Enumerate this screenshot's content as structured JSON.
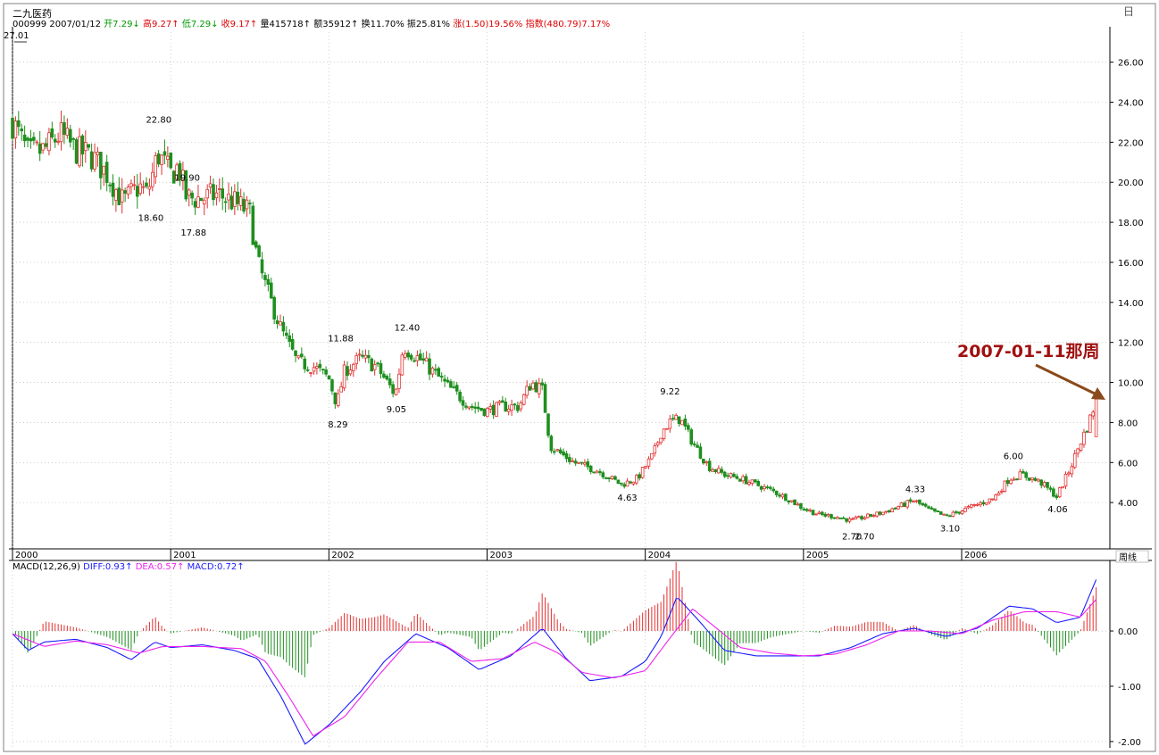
{
  "header": {
    "stock_name": "二九医药",
    "code": "000999",
    "date": "2007/01/12",
    "items": [
      {
        "label": "开",
        "value": "7.29",
        "arrow": "↓",
        "color": "#009900"
      },
      {
        "label": "高",
        "value": "9.27",
        "arrow": "↑",
        "color": "#dd0000"
      },
      {
        "label": "低",
        "value": "7.29",
        "arrow": "↓",
        "color": "#009900"
      },
      {
        "label": "收",
        "value": "9.17",
        "arrow": "↑",
        "color": "#dd0000"
      },
      {
        "label": "量",
        "value": "415718",
        "arrow": "↑",
        "color": "#000000"
      },
      {
        "label": "额",
        "value": "35912",
        "arrow": "↑",
        "color": "#000000"
      },
      {
        "label": "换",
        "value": "11.70%",
        "arrow": "",
        "color": "#000000"
      },
      {
        "label": "振",
        "value": "25.81%",
        "arrow": "",
        "color": "#000000"
      },
      {
        "label": "涨",
        "value": "(1.50)19.56%",
        "arrow": "",
        "color": "#dd0000"
      },
      {
        "label": "指数",
        "value": "(480.79)7.17%",
        "arrow": "",
        "color": "#dd0000"
      }
    ]
  },
  "corner_icon": "日",
  "period_label": "周线",
  "annotation": {
    "text": "2007-01-11那周",
    "color": "#a01010"
  },
  "macd_header": {
    "title": "MACD(12,26,9)",
    "diff": "DIFF:0.93",
    "dea": "DEA:0.57",
    "macd": "MACD:0.72",
    "arrow": "↑"
  },
  "colors": {
    "up": "#e23030",
    "down": "#1f8f1f",
    "diff_line": "#1a1aff",
    "dea_line": "#ee22ee",
    "grid": "#b0b0b0",
    "annotation": "#a01010"
  },
  "chart_data": [
    {
      "type": "candlestick",
      "period": "weekly",
      "y_axis_ticks": [
        "26.00",
        "24.00",
        "22.00",
        "20.00",
        "18.00",
        "16.00",
        "14.00",
        "12.00",
        "10.00",
        "8.00",
        "6.00",
        "4.00"
      ],
      "ylim": [
        2.0,
        27.5
      ],
      "x_axis_labels": [
        "2000",
        "2001",
        "2002",
        "2003",
        "2004",
        "2005",
        "2006"
      ],
      "x_range": [
        "2000-01",
        "2007-01"
      ],
      "high_low_labels": [
        {
          "text": "27.01",
          "x": 2000.0,
          "y": 27.01
        },
        {
          "text": "22.80",
          "x": 2000.9,
          "y": 22.8
        },
        {
          "text": "18.60",
          "x": 2000.85,
          "y": 18.6
        },
        {
          "text": "19.90",
          "x": 2001.08,
          "y": 19.9
        },
        {
          "text": "17.88",
          "x": 2001.12,
          "y": 17.88
        },
        {
          "text": "11.88",
          "x": 2002.05,
          "y": 11.88
        },
        {
          "text": "8.29",
          "x": 2002.05,
          "y": 8.29
        },
        {
          "text": "12.40",
          "x": 2002.47,
          "y": 12.4
        },
        {
          "text": "9.05",
          "x": 2002.42,
          "y": 9.05
        },
        {
          "text": "4.63",
          "x": 2003.88,
          "y": 4.63
        },
        {
          "text": "9.22",
          "x": 2004.15,
          "y": 9.22
        },
        {
          "text": "2.70",
          "x": 2005.3,
          "y": 2.7
        },
        {
          "text": "2.70",
          "x": 2005.38,
          "y": 2.7
        },
        {
          "text": "4.33",
          "x": 2005.7,
          "y": 4.33
        },
        {
          "text": "3.10",
          "x": 2005.92,
          "y": 3.1
        },
        {
          "text": "6.00",
          "x": 2006.32,
          "y": 6.0
        },
        {
          "text": "4.06",
          "x": 2006.6,
          "y": 4.06
        }
      ],
      "close_path": [
        [
          2000.0,
          23.0
        ],
        [
          2000.1,
          21.4
        ],
        [
          2000.2,
          21.6
        ],
        [
          2000.3,
          22.4
        ],
        [
          2000.4,
          21.6
        ],
        [
          2000.5,
          21.3
        ],
        [
          2000.6,
          20.4
        ],
        [
          2000.7,
          19.0
        ],
        [
          2000.8,
          19.8
        ],
        [
          2000.85,
          19.4
        ],
        [
          2000.92,
          21.4
        ],
        [
          2001.0,
          20.4
        ],
        [
          2001.05,
          20.8
        ],
        [
          2001.1,
          19.2
        ],
        [
          2001.2,
          19.2
        ],
        [
          2001.3,
          19.4
        ],
        [
          2001.4,
          19.0
        ],
        [
          2001.5,
          18.5
        ],
        [
          2001.55,
          16.0
        ],
        [
          2001.6,
          14.8
        ],
        [
          2001.7,
          12.6
        ],
        [
          2001.8,
          11.0
        ],
        [
          2001.9,
          10.8
        ],
        [
          2002.0,
          10.2
        ],
        [
          2002.05,
          8.9
        ],
        [
          2002.1,
          10.6
        ],
        [
          2002.2,
          11.2
        ],
        [
          2002.3,
          10.8
        ],
        [
          2002.42,
          9.4
        ],
        [
          2002.47,
          11.8
        ],
        [
          2002.6,
          11.0
        ],
        [
          2002.75,
          9.8
        ],
        [
          2002.9,
          8.8
        ],
        [
          2003.0,
          8.6
        ],
        [
          2003.1,
          8.8
        ],
        [
          2003.2,
          8.8
        ],
        [
          2003.28,
          10.0
        ],
        [
          2003.35,
          9.6
        ],
        [
          2003.4,
          6.8
        ],
        [
          2003.55,
          6.0
        ],
        [
          2003.7,
          5.6
        ],
        [
          2003.85,
          4.9
        ],
        [
          2003.95,
          5.2
        ],
        [
          2004.05,
          6.4
        ],
        [
          2004.1,
          7.5
        ],
        [
          2004.15,
          8.0
        ],
        [
          2004.22,
          8.2
        ],
        [
          2004.3,
          7.0
        ],
        [
          2004.4,
          5.8
        ],
        [
          2004.5,
          5.4
        ],
        [
          2004.6,
          5.2
        ],
        [
          2004.7,
          4.9
        ],
        [
          2004.8,
          4.6
        ],
        [
          2004.9,
          4.2
        ],
        [
          2005.0,
          3.7
        ],
        [
          2005.1,
          3.4
        ],
        [
          2005.2,
          3.3
        ],
        [
          2005.3,
          3.1
        ],
        [
          2005.4,
          3.3
        ],
        [
          2005.5,
          3.5
        ],
        [
          2005.6,
          3.8
        ],
        [
          2005.7,
          4.1
        ],
        [
          2005.8,
          3.6
        ],
        [
          2005.9,
          3.3
        ],
        [
          2006.0,
          3.6
        ],
        [
          2006.1,
          3.9
        ],
        [
          2006.2,
          4.2
        ],
        [
          2006.3,
          5.2
        ],
        [
          2006.38,
          5.4
        ],
        [
          2006.5,
          5.0
        ],
        [
          2006.6,
          4.3
        ],
        [
          2006.68,
          5.6
        ],
        [
          2006.75,
          7.0
        ],
        [
          2006.8,
          7.9
        ],
        [
          2006.85,
          9.17
        ]
      ],
      "last_candle": {
        "date": "2007-01-12",
        "open": 7.29,
        "high": 9.27,
        "low": 7.29,
        "close": 9.17
      }
    },
    {
      "type": "line+bar",
      "name": "MACD(12,26,9)",
      "y_axis_ticks": [
        "0.00",
        "-1.00",
        "-2.00"
      ],
      "ylim": [
        -2.05,
        1.05
      ],
      "series": [
        {
          "name": "DIFF",
          "values": [
            [
              2000.0,
              -0.05
            ],
            [
              2000.1,
              -0.35
            ],
            [
              2000.2,
              -0.2
            ],
            [
              2000.4,
              -0.15
            ],
            [
              2000.6,
              -0.3
            ],
            [
              2000.75,
              -0.52
            ],
            [
              2000.9,
              -0.2
            ],
            [
              2001.0,
              -0.3
            ],
            [
              2001.2,
              -0.25
            ],
            [
              2001.4,
              -0.35
            ],
            [
              2001.55,
              -0.5
            ],
            [
              2001.7,
              -1.2
            ],
            [
              2001.85,
              -2.05
            ],
            [
              2002.0,
              -1.7
            ],
            [
              2002.2,
              -1.1
            ],
            [
              2002.35,
              -0.55
            ],
            [
              2002.55,
              -0.05
            ],
            [
              2002.75,
              -0.3
            ],
            [
              2002.95,
              -0.7
            ],
            [
              2003.15,
              -0.45
            ],
            [
              2003.35,
              0.05
            ],
            [
              2003.5,
              -0.5
            ],
            [
              2003.65,
              -0.9
            ],
            [
              2003.85,
              -0.82
            ],
            [
              2004.0,
              -0.55
            ],
            [
              2004.1,
              -0.1
            ],
            [
              2004.2,
              0.62
            ],
            [
              2004.35,
              0.15
            ],
            [
              2004.5,
              -0.35
            ],
            [
              2004.7,
              -0.45
            ],
            [
              2004.9,
              -0.45
            ],
            [
              2005.1,
              -0.45
            ],
            [
              2005.3,
              -0.3
            ],
            [
              2005.5,
              -0.05
            ],
            [
              2005.7,
              0.05
            ],
            [
              2005.9,
              -0.1
            ],
            [
              2006.1,
              0.05
            ],
            [
              2006.3,
              0.45
            ],
            [
              2006.45,
              0.4
            ],
            [
              2006.6,
              0.15
            ],
            [
              2006.75,
              0.25
            ],
            [
              2006.85,
              0.93
            ]
          ]
        },
        {
          "name": "DEA",
          "values": [
            [
              2000.0,
              -0.05
            ],
            [
              2000.2,
              -0.28
            ],
            [
              2000.4,
              -0.18
            ],
            [
              2000.6,
              -0.25
            ],
            [
              2000.8,
              -0.4
            ],
            [
              2000.95,
              -0.28
            ],
            [
              2001.2,
              -0.28
            ],
            [
              2001.45,
              -0.32
            ],
            [
              2001.6,
              -0.55
            ],
            [
              2001.75,
              -1.2
            ],
            [
              2001.9,
              -1.9
            ],
            [
              2002.1,
              -1.55
            ],
            [
              2002.3,
              -0.85
            ],
            [
              2002.5,
              -0.2
            ],
            [
              2002.7,
              -0.2
            ],
            [
              2002.9,
              -0.55
            ],
            [
              2003.1,
              -0.5
            ],
            [
              2003.3,
              -0.2
            ],
            [
              2003.45,
              -0.4
            ],
            [
              2003.6,
              -0.75
            ],
            [
              2003.8,
              -0.85
            ],
            [
              2004.0,
              -0.72
            ],
            [
              2004.15,
              -0.15
            ],
            [
              2004.3,
              0.4
            ],
            [
              2004.45,
              0.05
            ],
            [
              2004.6,
              -0.3
            ],
            [
              2004.8,
              -0.4
            ],
            [
              2005.0,
              -0.45
            ],
            [
              2005.2,
              -0.42
            ],
            [
              2005.4,
              -0.25
            ],
            [
              2005.6,
              0.0
            ],
            [
              2005.8,
              0.0
            ],
            [
              2006.0,
              -0.05
            ],
            [
              2006.2,
              0.2
            ],
            [
              2006.4,
              0.35
            ],
            [
              2006.6,
              0.35
            ],
            [
              2006.75,
              0.25
            ],
            [
              2006.85,
              0.57
            ]
          ]
        }
      ]
    }
  ]
}
